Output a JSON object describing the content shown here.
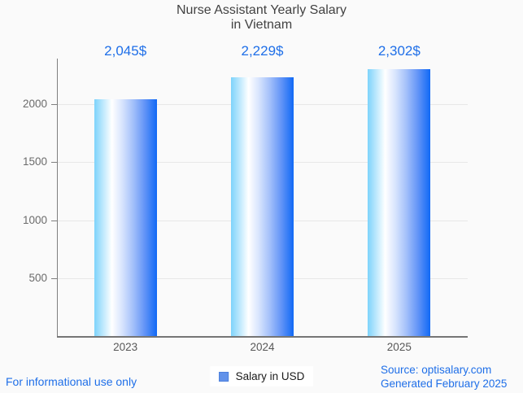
{
  "page": {
    "background": "#fafafa"
  },
  "title_lines": [
    "Nurse Assistant Yearly Salary",
    "in Vietnam"
  ],
  "chart_data": {
    "type": "bar",
    "title": "Nurse Assistant Yearly Salary in Vietnam",
    "categories": [
      "2023",
      "2024",
      "2025"
    ],
    "series": [
      {
        "name": "Salary in USD",
        "values": [
          2045,
          2229,
          2302
        ]
      }
    ],
    "value_labels": [
      "2,045$",
      "2,229$",
      "2,302$"
    ],
    "xlabel": "",
    "ylabel": "",
    "yticks": [
      500,
      1000,
      1500,
      2000
    ],
    "ylim": [
      0,
      2400
    ],
    "grid": true,
    "legend_position": "bottom-center",
    "bar_gradient": [
      "#7dd3fb",
      "#ffffff",
      "#d6e3fd",
      "#a3c0fa",
      "#6495f7",
      "#1069f5"
    ]
  },
  "legend": {
    "label": "Salary in USD",
    "swatch_color": "#6292ea",
    "swatch_border": "#4c80dd"
  },
  "footer": {
    "disclaimer": "For informational use only",
    "source_line1": "Source: optisalary.com",
    "source_line2": "Generated February 2025"
  },
  "colors": {
    "accent_blue": "#1f6fe8",
    "title_gray": "#424242",
    "axis_gray": "#6b6b6b",
    "grid": "#e7e7e7"
  }
}
